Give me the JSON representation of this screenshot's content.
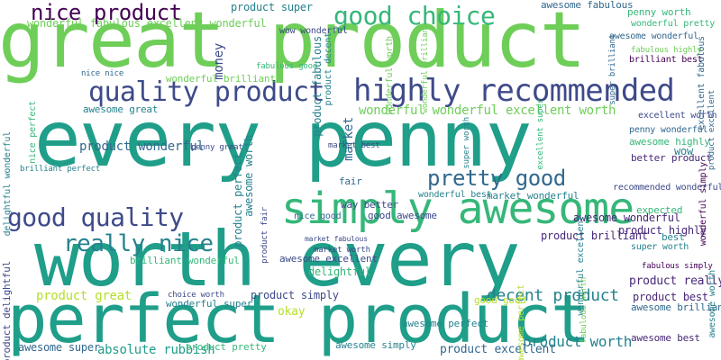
{
  "word_cloud": {
    "background": "#ffffff",
    "palette": [
      "#440154",
      "#482878",
      "#3e4a89",
      "#31688e",
      "#26828e",
      "#1f9e89",
      "#35b779",
      "#6ece58",
      "#b5de2b"
    ],
    "words": [
      {
        "text": "great product",
        "color": "#6ece58",
        "orientation": "horizontal"
      },
      {
        "text": "every penny",
        "color": "#1f9e89",
        "orientation": "horizontal"
      },
      {
        "text": "worth every",
        "color": "#1f9e89",
        "orientation": "horizontal"
      },
      {
        "text": "perfect product",
        "color": "#1f9e89",
        "orientation": "horizontal"
      },
      {
        "text": "simply awesome",
        "color": "#35b779",
        "orientation": "horizontal"
      },
      {
        "text": "highly recommended",
        "color": "#3e4a89",
        "orientation": "horizontal"
      },
      {
        "text": "quality product",
        "color": "#3e4a89",
        "orientation": "horizontal"
      },
      {
        "text": "good quality",
        "color": "#3e4a89",
        "orientation": "horizontal"
      },
      {
        "text": "really nice",
        "color": "#26828e",
        "orientation": "horizontal"
      },
      {
        "text": "good choice",
        "color": "#35b779",
        "orientation": "horizontal"
      },
      {
        "text": "nice product",
        "color": "#440154",
        "orientation": "horizontal"
      },
      {
        "text": "pretty good",
        "color": "#31688e",
        "orientation": "horizontal"
      },
      {
        "text": "decent product",
        "color": "#26828e",
        "orientation": "horizontal"
      },
      {
        "text": "product worth",
        "color": "#26828e",
        "orientation": "horizontal"
      },
      {
        "text": "absolute rubbish",
        "color": "#1f9e89",
        "orientation": "horizontal"
      },
      {
        "text": "wonderful fabulous excellent wonderful",
        "color": "#6ece58",
        "orientation": "horizontal"
      },
      {
        "text": "wonderful wonderful excellent worth",
        "color": "#6ece58",
        "orientation": "horizontal"
      },
      {
        "text": "product wonderful",
        "color": "#31688e",
        "orientation": "horizontal"
      },
      {
        "text": "product brilliant",
        "color": "#482878",
        "orientation": "horizontal"
      },
      {
        "text": "product simply",
        "color": "#3e4a89",
        "orientation": "horizontal"
      },
      {
        "text": "product excellent",
        "color": "#31688e",
        "orientation": "horizontal"
      },
      {
        "text": "product great",
        "color": "#b5de2b",
        "orientation": "horizontal"
      },
      {
        "text": "product best",
        "color": "#482878",
        "orientation": "horizontal"
      },
      {
        "text": "product really",
        "color": "#482878",
        "orientation": "horizontal"
      },
      {
        "text": "product highly",
        "color": "#482878",
        "orientation": "horizontal"
      },
      {
        "text": "product super",
        "color": "#26828e",
        "orientation": "horizontal"
      },
      {
        "text": "product pretty",
        "color": "#35b779",
        "orientation": "horizontal"
      },
      {
        "text": "awesome super",
        "color": "#31688e",
        "orientation": "horizontal"
      },
      {
        "text": "awesome great",
        "color": "#26828e",
        "orientation": "horizontal"
      },
      {
        "text": "awesome simply",
        "color": "#26828e",
        "orientation": "horizontal"
      },
      {
        "text": "awesome fabulous",
        "color": "#31688e",
        "orientation": "horizontal"
      },
      {
        "text": "awesome perfect",
        "color": "#26828e",
        "orientation": "horizontal"
      },
      {
        "text": "awesome wonderful",
        "color": "#482878",
        "orientation": "horizontal"
      },
      {
        "text": "awesome excellent",
        "color": "#3e4a89",
        "orientation": "horizontal"
      },
      {
        "text": "awesome brilliant",
        "color": "#31688e",
        "orientation": "horizontal"
      },
      {
        "text": "awesome best",
        "color": "#482878",
        "orientation": "horizontal"
      },
      {
        "text": "awesome highly",
        "color": "#35b779",
        "orientation": "horizontal"
      },
      {
        "text": "wonderful brilliant",
        "color": "#6ece58",
        "orientation": "horizontal"
      },
      {
        "text": "wonderful super",
        "color": "#26828e",
        "orientation": "horizontal"
      },
      {
        "text": "wonderful best",
        "color": "#26828e",
        "orientation": "horizontal"
      },
      {
        "text": "brilliant wonderful",
        "color": "#35b779",
        "orientation": "horizontal"
      },
      {
        "text": "market wonderful",
        "color": "#26828e",
        "orientation": "horizontal"
      },
      {
        "text": "better product",
        "color": "#482878",
        "orientation": "horizontal"
      },
      {
        "text": "way better",
        "color": "#3e4a89",
        "orientation": "horizontal"
      },
      {
        "text": "good awesome",
        "color": "#3e4a89",
        "orientation": "horizontal"
      },
      {
        "text": "okay",
        "color": "#b5de2b",
        "orientation": "horizontal"
      },
      {
        "text": "delightful",
        "color": "#35b779",
        "orientation": "horizontal"
      },
      {
        "text": "best",
        "color": "#26828e",
        "orientation": "horizontal"
      },
      {
        "text": "wow",
        "color": "#26828e",
        "orientation": "horizontal"
      },
      {
        "text": "fair",
        "color": "#31688e",
        "orientation": "horizontal"
      },
      {
        "text": "expected",
        "color": "#35b779",
        "orientation": "horizontal"
      },
      {
        "text": "wow wonderful",
        "color": "#3e4a89",
        "orientation": "horizontal"
      },
      {
        "text": "excellent worth",
        "color": "#3e4a89",
        "orientation": "horizontal"
      },
      {
        "text": "nice good",
        "color": "#31688e",
        "orientation": "horizontal"
      },
      {
        "text": "good good",
        "color": "#b5de2b",
        "orientation": "horizontal"
      },
      {
        "text": "penny wonderful",
        "color": "#31688e",
        "orientation": "horizontal"
      },
      {
        "text": "recommended wonderful",
        "color": "#3e4a89",
        "orientation": "horizontal"
      },
      {
        "text": "super worth",
        "color": "#26828e",
        "orientation": "horizontal"
      },
      {
        "text": "fabulous simply",
        "color": "#440154",
        "orientation": "horizontal"
      },
      {
        "text": "fabulous highly",
        "color": "#6ece58",
        "orientation": "horizontal"
      },
      {
        "text": "brilliant best",
        "color": "#440154",
        "orientation": "horizontal"
      },
      {
        "text": "awesome wonderful",
        "color": "#31688e",
        "orientation": "horizontal"
      },
      {
        "text": "penny worth",
        "color": "#35b779",
        "orientation": "horizontal"
      },
      {
        "text": "wonderful pretty",
        "color": "#35b779",
        "orientation": "horizontal"
      },
      {
        "text": "nice nice",
        "color": "#31688e",
        "orientation": "horizontal"
      },
      {
        "text": "fabulous good",
        "color": "#35b779",
        "orientation": "horizontal"
      },
      {
        "text": "choice worth",
        "color": "#3e4a89",
        "orientation": "horizontal"
      },
      {
        "text": "market best",
        "color": "#3e4a89",
        "orientation": "horizontal"
      },
      {
        "text": "market worth",
        "color": "#3e4a89",
        "orientation": "horizontal"
      },
      {
        "text": "penny great",
        "color": "#3e4a89",
        "orientation": "horizontal"
      },
      {
        "text": "market fabulous",
        "color": "#3e4a89",
        "orientation": "horizontal"
      },
      {
        "text": "brilliant perfect",
        "color": "#26828e",
        "orientation": "horizontal"
      },
      {
        "text": "money",
        "color": "#3e4a89",
        "orientation": "vertical"
      },
      {
        "text": "market",
        "color": "#31688e",
        "orientation": "vertical"
      },
      {
        "text": "awesome worth",
        "color": "#26828e",
        "orientation": "vertical"
      },
      {
        "text": "product perfect",
        "color": "#26828e",
        "orientation": "vertical"
      },
      {
        "text": "product fabulous",
        "color": "#26828e",
        "orientation": "vertical"
      },
      {
        "text": "product decent",
        "color": "#26828e",
        "orientation": "vertical"
      },
      {
        "text": "product delightful",
        "color": "#3e4a89",
        "orientation": "vertical"
      },
      {
        "text": "wonderful worth",
        "color": "#6ece58",
        "orientation": "vertical"
      },
      {
        "text": "wonderful excellent",
        "color": "#26828e",
        "orientation": "vertical"
      },
      {
        "text": "nice perfect",
        "color": "#35b779",
        "orientation": "vertical"
      },
      {
        "text": "wonderful simply",
        "color": "#440154",
        "orientation": "vertical"
      },
      {
        "text": "excellent fabulous",
        "color": "#31688e",
        "orientation": "vertical"
      },
      {
        "text": "super worth",
        "color": "#26828e",
        "orientation": "vertical"
      },
      {
        "text": "excellent super",
        "color": "#35b779",
        "orientation": "vertical"
      },
      {
        "text": "delightful wonderful",
        "color": "#26828e",
        "orientation": "vertical"
      },
      {
        "text": "super brilliant",
        "color": "#31688e",
        "orientation": "vertical"
      },
      {
        "text": "product fair",
        "color": "#3e4a89",
        "orientation": "vertical"
      },
      {
        "text": "awesome perfect",
        "color": "#b5de2b",
        "orientation": "vertical"
      },
      {
        "text": "awesome worth",
        "color": "#26828e",
        "orientation": "vertical"
      },
      {
        "text": "fabulous worth",
        "color": "#6ece58",
        "orientation": "vertical"
      },
      {
        "text": "wonderful brilliant",
        "color": "#6ece58",
        "orientation": "vertical"
      },
      {
        "text": "product excellent",
        "color": "#31688e",
        "orientation": "vertical"
      }
    ]
  }
}
